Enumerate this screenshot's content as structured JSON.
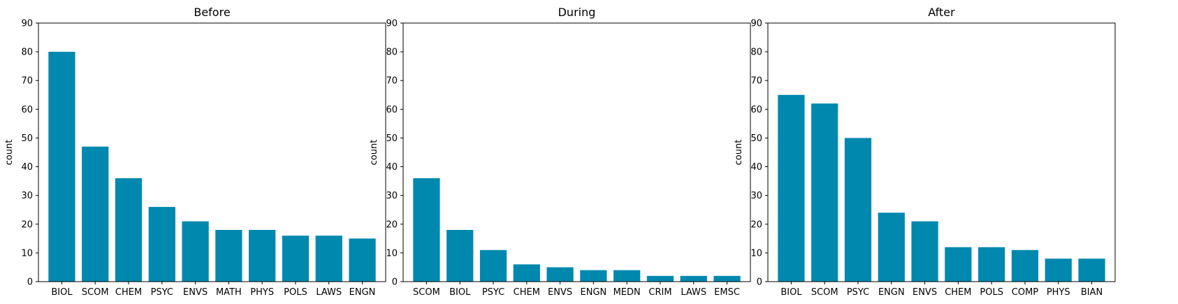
{
  "colors": {
    "bar": "#0088ae",
    "axis": "#000000",
    "background": "#ffffff"
  },
  "chart_data": [
    {
      "type": "bar",
      "title": "Before",
      "xlabel": "",
      "ylabel": "count",
      "ylim": [
        0,
        90
      ],
      "yticks": [
        0,
        10,
        20,
        30,
        40,
        50,
        60,
        70,
        80,
        90
      ],
      "grid": false,
      "categories": [
        "BIOL",
        "SCOM",
        "CHEM",
        "PSYC",
        "ENVS",
        "MATH",
        "PHYS",
        "POLS",
        "LAWS",
        "ENGN"
      ],
      "values": [
        80,
        47,
        36,
        26,
        21,
        18,
        18,
        16,
        16,
        15
      ]
    },
    {
      "type": "bar",
      "title": "During",
      "xlabel": "",
      "ylabel": "count",
      "ylim": [
        0,
        90
      ],
      "yticks": [
        0,
        10,
        20,
        30,
        40,
        50,
        60,
        70,
        80,
        90
      ],
      "grid": false,
      "categories": [
        "SCOM",
        "BIOL",
        "PSYC",
        "CHEM",
        "ENVS",
        "ENGN",
        "MEDN",
        "CRIM",
        "LAWS",
        "EMSC"
      ],
      "values": [
        36,
        18,
        11,
        6,
        5,
        4,
        4,
        2,
        2,
        2
      ]
    },
    {
      "type": "bar",
      "title": "After",
      "xlabel": "",
      "ylabel": "count",
      "ylim": [
        0,
        90
      ],
      "yticks": [
        0,
        10,
        20,
        30,
        40,
        50,
        60,
        70,
        80,
        90
      ],
      "grid": false,
      "categories": [
        "BIOL",
        "SCOM",
        "PSYC",
        "ENGN",
        "ENVS",
        "CHEM",
        "POLS",
        "COMP",
        "PHYS",
        "BIAN"
      ],
      "values": [
        65,
        62,
        50,
        24,
        21,
        12,
        12,
        11,
        8,
        8
      ]
    }
  ]
}
